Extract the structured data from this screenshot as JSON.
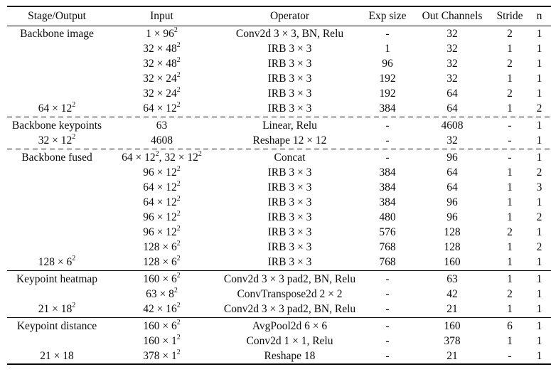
{
  "colors": {
    "background": "#ffffff",
    "text": "#0b0b0b",
    "rule": "#0b0b0b"
  },
  "table": {
    "columns": [
      "Stage/Output",
      "Input",
      "Operator",
      "Exp size",
      "Out Channels",
      "Stride",
      "n"
    ],
    "column_keys": [
      "stage",
      "input",
      "operator",
      "exp_size",
      "out_channels",
      "stride",
      "n"
    ],
    "sections": [
      {
        "name": "backbone-image",
        "separator_before": "none",
        "rows": [
          {
            "stage": "Backbone image",
            "input": "1 × 96²",
            "operator": "Conv2d 3 × 3, BN, Relu",
            "exp_size": "-",
            "out_channels": "32",
            "stride": "2",
            "n": "1"
          },
          {
            "stage": "",
            "input": "32 × 48²",
            "operator": "IRB 3 × 3",
            "exp_size": "1",
            "out_channels": "32",
            "stride": "1",
            "n": "1"
          },
          {
            "stage": "",
            "input": "32 × 48²",
            "operator": "IRB 3 × 3",
            "exp_size": "96",
            "out_channels": "32",
            "stride": "2",
            "n": "1"
          },
          {
            "stage": "",
            "input": "32 × 24²",
            "operator": "IRB 3 × 3",
            "exp_size": "192",
            "out_channels": "32",
            "stride": "1",
            "n": "1"
          },
          {
            "stage": "",
            "input": "32 × 24²",
            "operator": "IRB 3 × 3",
            "exp_size": "192",
            "out_channels": "64",
            "stride": "2",
            "n": "1"
          },
          {
            "stage": "64 × 12²",
            "input": "64 × 12²",
            "operator": "IRB 3 × 3",
            "exp_size": "384",
            "out_channels": "64",
            "stride": "1",
            "n": "2"
          }
        ]
      },
      {
        "name": "backbone-keypoints",
        "separator_before": "dashed",
        "rows": [
          {
            "stage": "Backbone keypoints",
            "input": "63",
            "operator": "Linear, Relu",
            "exp_size": "-",
            "out_channels": "4608",
            "stride": "-",
            "n": "1"
          },
          {
            "stage": "32 × 12²",
            "input": "4608",
            "operator": "Reshape 12 × 12",
            "exp_size": "-",
            "out_channels": "32",
            "stride": "-",
            "n": "1"
          }
        ]
      },
      {
        "name": "backbone-fused",
        "separator_before": "dashed",
        "rows": [
          {
            "stage": "Backbone fused",
            "input": "64 × 12², 32 × 12²",
            "operator": "Concat",
            "exp_size": "-",
            "out_channels": "96",
            "stride": "-",
            "n": "1"
          },
          {
            "stage": "",
            "input": "96 × 12²",
            "operator": "IRB 3 × 3",
            "exp_size": "384",
            "out_channels": "64",
            "stride": "1",
            "n": "2"
          },
          {
            "stage": "",
            "input": "64 × 12²",
            "operator": "IRB 3 × 3",
            "exp_size": "384",
            "out_channels": "64",
            "stride": "1",
            "n": "3"
          },
          {
            "stage": "",
            "input": "64 × 12²",
            "operator": "IRB 3 × 3",
            "exp_size": "384",
            "out_channels": "96",
            "stride": "1",
            "n": "1"
          },
          {
            "stage": "",
            "input": "96 × 12²",
            "operator": "IRB 3 × 3",
            "exp_size": "480",
            "out_channels": "96",
            "stride": "1",
            "n": "2"
          },
          {
            "stage": "",
            "input": "96 × 12²",
            "operator": "IRB 3 × 3",
            "exp_size": "576",
            "out_channels": "128",
            "stride": "2",
            "n": "1"
          },
          {
            "stage": "",
            "input": "128 × 6²",
            "operator": "IRB 3 × 3",
            "exp_size": "768",
            "out_channels": "128",
            "stride": "1",
            "n": "2"
          },
          {
            "stage": "128 × 6²",
            "input": "128 × 6²",
            "operator": "IRB 3 × 3",
            "exp_size": "768",
            "out_channels": "160",
            "stride": "1",
            "n": "1"
          }
        ]
      },
      {
        "name": "keypoint-heatmap",
        "separator_before": "solid",
        "rows": [
          {
            "stage": "Keypoint heatmap",
            "input": "160 × 6²",
            "operator": "Conv2d 3 × 3 pad2, BN, Relu",
            "exp_size": "-",
            "out_channels": "63",
            "stride": "1",
            "n": "1"
          },
          {
            "stage": "",
            "input": "63 × 8²",
            "operator": "ConvTranspose2d 2 × 2",
            "exp_size": "-",
            "out_channels": "42",
            "stride": "2",
            "n": "1"
          },
          {
            "stage": "21 × 18²",
            "input": "42 × 16²",
            "operator": "Conv2d 3 × 3 pad2, BN, Relu",
            "exp_size": "-",
            "out_channels": "21",
            "stride": "1",
            "n": "1"
          }
        ]
      },
      {
        "name": "keypoint-distance",
        "separator_before": "solid",
        "rows": [
          {
            "stage": "Keypoint distance",
            "input": "160 × 6²",
            "operator": "AvgPool2d 6 × 6",
            "exp_size": "-",
            "out_channels": "160",
            "stride": "6",
            "n": "1"
          },
          {
            "stage": "",
            "input": "160 × 1²",
            "operator": "Conv2d 1 × 1, Relu",
            "exp_size": "-",
            "out_channels": "378",
            "stride": "1",
            "n": "1"
          },
          {
            "stage": "21 × 18",
            "input": "378 × 1²",
            "operator": "Reshape 18",
            "exp_size": "-",
            "out_channels": "21",
            "stride": "-",
            "n": "1"
          }
        ]
      }
    ]
  }
}
